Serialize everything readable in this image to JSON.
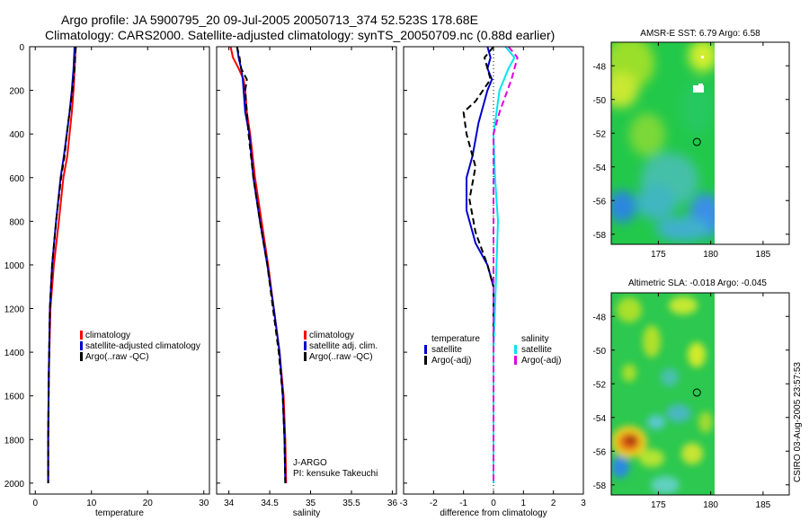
{
  "figure": {
    "title_line1": "Argo profile: JA 5900795_20 09-Jul-2005 20050713_374 52.523S 178.68E",
    "title_line2": "Climatology: CARS2000. Satellite-adjusted climatology: synTS_20050709.nc (0.88d earlier)",
    "side_label": "CSIRO 03-Aug-2005 23:57:53",
    "float_info_line1": "J-ARGO",
    "float_info_line2": "PI: kensuke Takeuchi"
  },
  "colors": {
    "climatology": "#ff0000",
    "satellite": "#0000cc",
    "argo": "#000000",
    "sat_salinity": "#00e5ee",
    "argo_salinity": "#e000e0"
  },
  "chart_data": [
    {
      "id": "temp",
      "type": "line",
      "xlabel": "temperature",
      "xlim": [
        -1,
        31
      ],
      "ylim": [
        0,
        2050
      ],
      "xticks": [
        0,
        10,
        20,
        30
      ],
      "xtick_labels": [
        "0",
        "10",
        "20",
        "30"
      ],
      "yticks": [
        0,
        200,
        400,
        600,
        800,
        1000,
        1200,
        1400,
        1600,
        1800,
        2000
      ],
      "ytick_labels": [
        "0",
        "200",
        "400",
        "600",
        "800",
        "1000",
        "1200",
        "1400",
        "1600",
        "1800",
        "2000"
      ],
      "legend": [
        "climatology",
        "satellite-adjusted climatology",
        "Argo(..raw -QC)"
      ],
      "series": [
        {
          "name": "climatology",
          "color_key": "climatology",
          "style": "solid",
          "x": [
            7.2,
            7.1,
            7.0,
            6.8,
            6.5,
            6.1,
            5.7,
            5.0,
            4.2,
            3.3,
            2.7,
            2.4,
            2.3,
            2.3
          ],
          "y": [
            0,
            50,
            100,
            200,
            300,
            400,
            500,
            600,
            800,
            1000,
            1200,
            1500,
            1800,
            2000
          ]
        },
        {
          "name": "satellite-adjusted climatology",
          "color_key": "satellite",
          "style": "solid",
          "x": [
            7.0,
            6.9,
            6.8,
            6.5,
            6.1,
            5.6,
            5.1,
            4.5,
            3.7,
            3.0,
            2.6,
            2.4,
            2.3,
            2.3
          ],
          "y": [
            0,
            50,
            100,
            200,
            300,
            400,
            500,
            600,
            800,
            1000,
            1200,
            1500,
            1800,
            2000
          ]
        },
        {
          "name": "Argo(..raw -QC)",
          "color_key": "argo",
          "style": "dash",
          "x": [
            7.2,
            7.1,
            7.0,
            6.6,
            6.1,
            5.6,
            5.2,
            4.6,
            3.7,
            3.0,
            2.6,
            2.4,
            2.3,
            2.3
          ],
          "y": [
            0,
            50,
            100,
            200,
            300,
            400,
            500,
            600,
            800,
            1000,
            1200,
            1500,
            1800,
            2000
          ]
        }
      ]
    },
    {
      "id": "salt",
      "type": "line",
      "xlabel": "salinity",
      "xlim": [
        33.85,
        36.05
      ],
      "ylim": [
        0,
        2050
      ],
      "xticks": [
        34,
        34.5,
        35,
        35.5,
        36
      ],
      "xtick_labels": [
        "34",
        "34.5",
        "35",
        "35.5",
        "36"
      ],
      "legend": [
        "climatology",
        "satellite adj. clim.",
        "Argo(..raw -QC)"
      ],
      "series": [
        {
          "name": "climatology",
          "color_key": "climatology",
          "style": "solid",
          "x": [
            34.02,
            34.05,
            34.12,
            34.18,
            34.2,
            34.22,
            34.26,
            34.32,
            34.4,
            34.48,
            34.55,
            34.62,
            34.67,
            34.69,
            34.7
          ],
          "y": [
            0,
            50,
            100,
            150,
            200,
            300,
            400,
            600,
            800,
            1000,
            1200,
            1400,
            1600,
            1800,
            2000
          ]
        },
        {
          "name": "satellite adj. clim.",
          "color_key": "satellite",
          "style": "solid",
          "x": [
            34.1,
            34.12,
            34.15,
            34.17,
            34.18,
            34.2,
            34.25,
            34.3,
            34.38,
            34.47,
            34.55,
            34.62,
            34.66,
            34.68,
            34.69
          ],
          "y": [
            0,
            50,
            100,
            150,
            200,
            300,
            400,
            600,
            800,
            1000,
            1200,
            1400,
            1600,
            1800,
            2000
          ]
        },
        {
          "name": "Argo(..raw -QC)",
          "color_key": "argo",
          "style": "dash",
          "x": [
            34.1,
            34.13,
            34.15,
            34.22,
            34.2,
            34.22,
            34.24,
            34.3,
            34.38,
            34.47,
            34.54,
            34.61,
            34.66,
            34.68,
            34.69
          ],
          "y": [
            0,
            50,
            100,
            150,
            200,
            300,
            400,
            600,
            800,
            1000,
            1200,
            1400,
            1600,
            1800,
            2000
          ]
        }
      ]
    },
    {
      "id": "diff",
      "type": "line",
      "xlabel": "difference from climatology",
      "xlim": [
        -3,
        3
      ],
      "ylim": [
        0,
        2050
      ],
      "xticks": [
        -3,
        -2,
        -1,
        0,
        1,
        2,
        3
      ],
      "xtick_labels": [
        "-3",
        "-2",
        "-1",
        "0",
        "1",
        "2",
        "3"
      ],
      "legend_left_title": "temperature",
      "legend_left": [
        "satellite",
        "Argo(-adj)"
      ],
      "legend_right_title": "salinity",
      "legend_right": [
        "satellite",
        "Argo(-adj)"
      ],
      "series": [
        {
          "name": "temperature satellite",
          "color_key": "satellite",
          "style": "solid",
          "x": [
            -0.2,
            -0.1,
            -0.2,
            -0.05,
            -0.2,
            -0.5,
            -0.7,
            -0.9,
            -0.9,
            -0.6,
            -0.2,
            0.0,
            0.0,
            0.0
          ],
          "y": [
            0,
            50,
            100,
            150,
            200,
            350,
            500,
            600,
            750,
            900,
            1000,
            1100,
            1500,
            2000
          ]
        },
        {
          "name": "temperature Argo(-adj)",
          "color_key": "argo",
          "style": "dash",
          "x": [
            0.0,
            -0.3,
            -0.1,
            -0.6,
            -1.0,
            -0.9,
            -0.6,
            -0.8,
            -0.6,
            -0.2,
            0.0,
            0.0
          ],
          "y": [
            0,
            50,
            150,
            250,
            300,
            400,
            550,
            700,
            850,
            1000,
            1100,
            2000
          ]
        },
        {
          "name": "salinity satellite",
          "color_key": "sat_salinity",
          "style": "solid",
          "x": [
            0.4,
            0.7,
            0.5,
            0.2,
            0.0,
            0.05,
            0.15,
            0.1,
            0.05,
            0.0,
            0.0
          ],
          "y": [
            0,
            50,
            100,
            200,
            400,
            600,
            800,
            1000,
            1200,
            1400,
            2000
          ]
        },
        {
          "name": "salinity Argo(-adj)",
          "color_key": "argo_salinity",
          "style": "dash",
          "x": [
            0.5,
            0.8,
            0.6,
            0.2,
            0.0,
            0.0,
            0.0
          ],
          "y": [
            0,
            50,
            150,
            300,
            400,
            1000,
            2000
          ]
        }
      ]
    },
    {
      "id": "sst_map",
      "type": "heatmap",
      "title": "AMSR-E SST: 6.79 Argo: 6.58",
      "xlim": [
        170.5,
        187.5
      ],
      "ylim": [
        -58.6,
        -46.6
      ],
      "xticks": [
        175,
        180,
        185
      ],
      "xtick_labels": [
        "175",
        "180",
        "185"
      ],
      "yticks": [
        -48,
        -50,
        -52,
        -54,
        -56,
        -58
      ],
      "ytick_labels": [
        "-48",
        "-50",
        "-52",
        "-54",
        "-56",
        "-58"
      ],
      "data_lon_range": [
        170.5,
        180.0
      ],
      "marker": {
        "lon": 178.68,
        "lat": -52.523
      }
    },
    {
      "id": "sla_map",
      "type": "heatmap",
      "title": "Altimetric SLA: -0.018 Argo: -0.045",
      "xlim": [
        170.5,
        187.5
      ],
      "ylim": [
        -58.6,
        -46.6
      ],
      "xticks": [
        175,
        180,
        185
      ],
      "xtick_labels": [
        "175",
        "180",
        "185"
      ],
      "yticks": [
        -48,
        -50,
        -52,
        -54,
        -56,
        -58
      ],
      "ytick_labels": [
        "-48",
        "-50",
        "-52",
        "-54",
        "-56",
        "-58"
      ],
      "data_lon_range": [
        170.5,
        180.0
      ],
      "marker": {
        "lon": 178.68,
        "lat": -52.523
      }
    }
  ]
}
